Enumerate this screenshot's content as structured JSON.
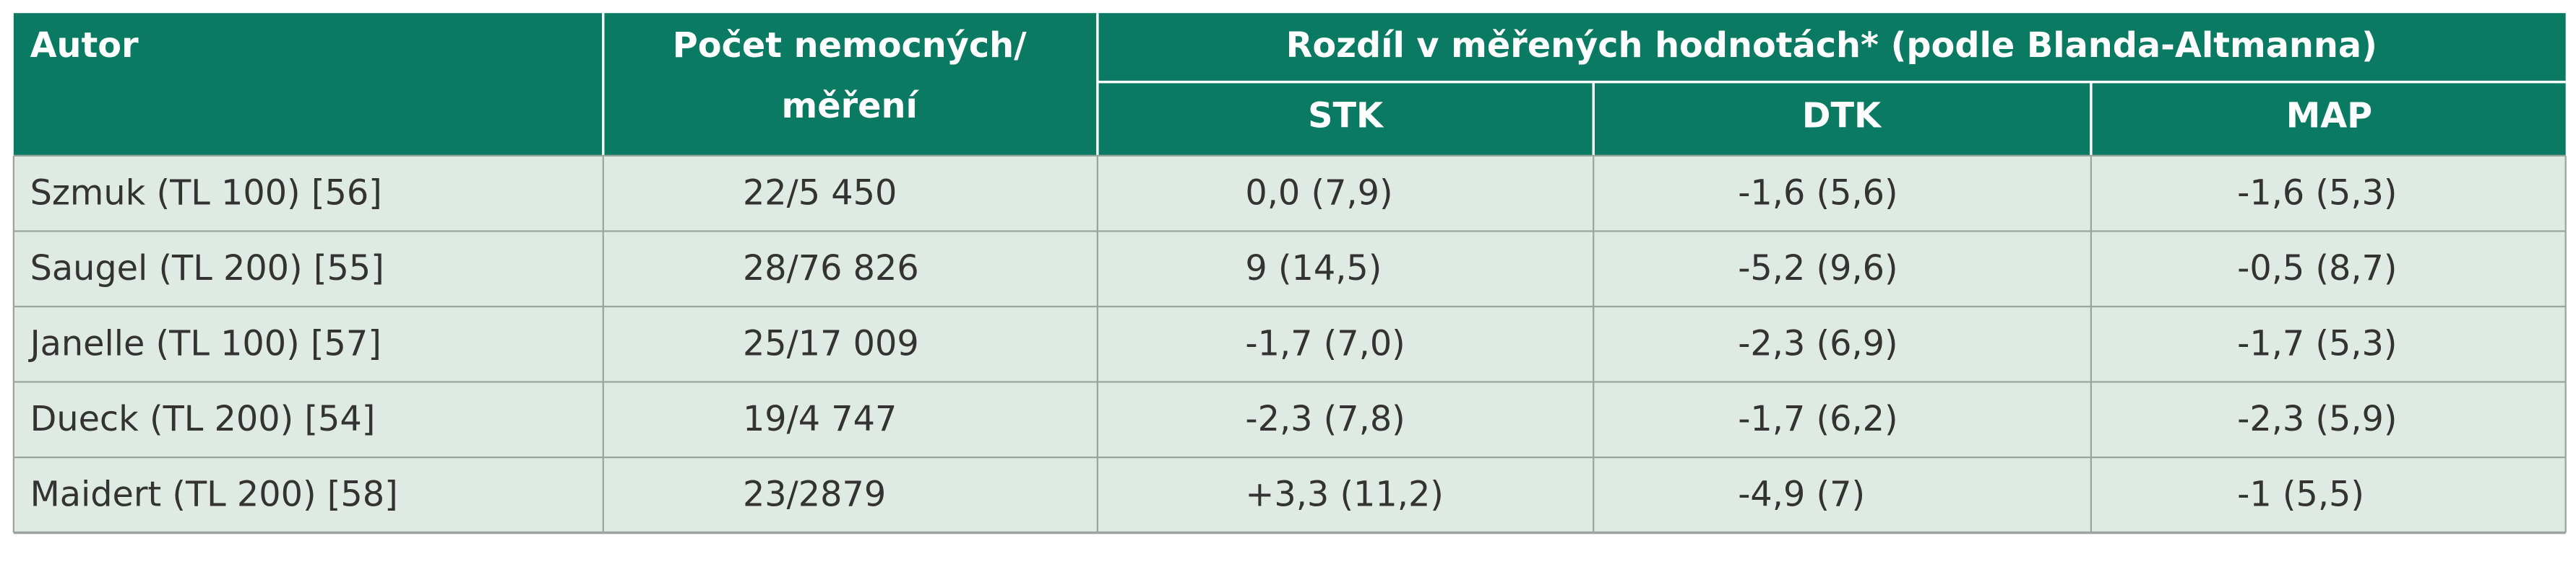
{
  "table": {
    "header": {
      "author": "Autor",
      "count": [
        "Počet nemocných/",
        "měření"
      ],
      "difference": "Rozdíl v měřených hodnotách* (podle Blanda-Altmanna)",
      "subcolumns": [
        "STK",
        "DTK",
        "MAP"
      ]
    },
    "rows": [
      [
        "Szmuk (TL 100) [56]",
        "22/5 450",
        "0,0 (7,9)",
        "-1,6 (5,6)",
        "-1,6 (5,3)"
      ],
      [
        "Saugel (TL 200) [55]",
        "28/76 826",
        "9 (14,5)",
        "-5,2 (9,6)",
        "-0,5 (8,7)"
      ],
      [
        "Janelle (TL 100) [57]",
        "25/17 009",
        "-1,7 (7,0)",
        "-2,3 (6,9)",
        "-1,7 (5,3)"
      ],
      [
        "Dueck (TL 200) [54]",
        "19/4 747",
        "-2,3 (7,8)",
        "-1,7 (6,2)",
        "-2,3 (5,9)"
      ],
      [
        "Maidert (TL 200) [58]",
        "23/2879",
        "+3,3 (11,2)",
        "-4,9 (7)",
        "-1 (5,5)"
      ]
    ]
  }
}
